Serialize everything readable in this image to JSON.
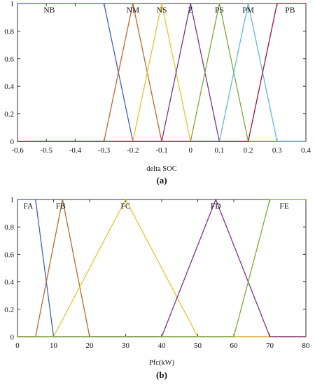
{
  "chart_data": [
    {
      "type": "line",
      "panel": "(a)",
      "xlabel": "delta SOC",
      "ylabel": "",
      "xlim": [
        -0.6,
        0.4
      ],
      "ylim": [
        0,
        1
      ],
      "xticks": [
        -0.6,
        -0.5,
        -0.4,
        -0.3,
        -0.2,
        -0.1,
        0,
        0.1,
        0.2,
        0.3,
        0.4
      ],
      "yticks": [
        0,
        0.2,
        0.4,
        0.6,
        0.8,
        1
      ],
      "xtick_labels": [
        "-0.6",
        "-0.5",
        "-0.4",
        "-0.3",
        "-0.2",
        "-0.1",
        "0",
        "0.1",
        "0.2",
        "0.3",
        "0.4"
      ],
      "ytick_labels": [
        "0",
        "0.2",
        "0.4",
        "0.6",
        "0.8",
        "1"
      ],
      "grid": false,
      "series": [
        {
          "name": "NB",
          "color": "#3d5fc4",
          "points": [
            [
              -0.6,
              1
            ],
            [
              -0.3,
              1
            ],
            [
              -0.2,
              0
            ],
            [
              0.4,
              0
            ]
          ]
        },
        {
          "name": "NM",
          "color": "#c0652a",
          "points": [
            [
              -0.6,
              0
            ],
            [
              -0.3,
              0
            ],
            [
              -0.2,
              1
            ],
            [
              -0.1,
              0
            ],
            [
              0.4,
              0
            ]
          ]
        },
        {
          "name": "NS",
          "color": "#e3c62a",
          "points": [
            [
              -0.6,
              0
            ],
            [
              -0.2,
              0
            ],
            [
              -0.1,
              1
            ],
            [
              0,
              0
            ],
            [
              0.4,
              0
            ]
          ]
        },
        {
          "name": "Z",
          "color": "#7e2f8e",
          "points": [
            [
              -0.6,
              0
            ],
            [
              -0.1,
              0
            ],
            [
              0,
              1
            ],
            [
              0.1,
              0
            ],
            [
              0.4,
              0
            ]
          ]
        },
        {
          "name": "PS",
          "color": "#77ac30",
          "points": [
            [
              -0.6,
              0
            ],
            [
              0,
              0
            ],
            [
              0.1,
              1
            ],
            [
              0.2,
              0
            ],
            [
              0.4,
              0
            ]
          ]
        },
        {
          "name": "PM",
          "color": "#5fb6e6",
          "points": [
            [
              -0.6,
              0
            ],
            [
              0.1,
              0
            ],
            [
              0.2,
              1
            ],
            [
              0.3,
              0
            ],
            [
              0.4,
              0
            ]
          ]
        },
        {
          "name": "PB",
          "color": "#a2142f",
          "points": [
            [
              -0.6,
              0
            ],
            [
              0.2,
              0
            ],
            [
              0.3,
              1
            ],
            [
              0.4,
              1
            ]
          ]
        }
      ],
      "mf_labels": [
        {
          "text": "NB",
          "x": -0.49
        },
        {
          "text": "NM",
          "x": -0.2
        },
        {
          "text": "NS",
          "x": -0.1
        },
        {
          "text": "Z",
          "x": 0
        },
        {
          "text": "PS",
          "x": 0.1
        },
        {
          "text": "PM",
          "x": 0.2
        },
        {
          "text": "PB",
          "x": 0.345
        }
      ]
    },
    {
      "type": "line",
      "panel": "(b)",
      "xlabel": "Pfc(kW)",
      "ylabel": "",
      "xlim": [
        0,
        80
      ],
      "ylim": [
        0,
        1
      ],
      "xticks": [
        0,
        10,
        20,
        30,
        40,
        50,
        60,
        70,
        80
      ],
      "yticks": [
        0,
        0.2,
        0.4,
        0.6,
        0.8,
        1
      ],
      "xtick_labels": [
        "0",
        "10",
        "20",
        "30",
        "40",
        "50",
        "60",
        "70",
        "80"
      ],
      "ytick_labels": [
        "0",
        "0.2",
        "0.4",
        "0.6",
        "0.8",
        "1"
      ],
      "grid": false,
      "series": [
        {
          "name": "FA",
          "color": "#3d5fc4",
          "points": [
            [
              0,
              1
            ],
            [
              5,
              1
            ],
            [
              10,
              0
            ],
            [
              80,
              0
            ]
          ]
        },
        {
          "name": "FB",
          "color": "#c0652a",
          "points": [
            [
              0,
              0
            ],
            [
              5,
              0
            ],
            [
              12.5,
              1
            ],
            [
              20,
              0
            ],
            [
              80,
              0
            ]
          ]
        },
        {
          "name": "FC",
          "color": "#e3c62a",
          "points": [
            [
              0,
              0
            ],
            [
              10,
              0
            ],
            [
              30,
              1
            ],
            [
              50,
              0
            ],
            [
              80,
              0
            ]
          ]
        },
        {
          "name": "FD",
          "color": "#7e2f8e",
          "points": [
            [
              0,
              0
            ],
            [
              40,
              0
            ],
            [
              55,
              1
            ],
            [
              70,
              0
            ],
            [
              80,
              0
            ]
          ]
        },
        {
          "name": "FE",
          "color": "#77ac30",
          "points": [
            [
              0,
              0
            ],
            [
              60,
              0
            ],
            [
              70,
              1
            ],
            [
              80,
              1
            ]
          ]
        }
      ],
      "mf_labels": [
        {
          "text": "FA",
          "x": 3
        },
        {
          "text": "FB",
          "x": 12
        },
        {
          "text": "FC",
          "x": 30
        },
        {
          "text": "FD",
          "x": 55
        },
        {
          "text": "FE",
          "x": 74
        }
      ]
    }
  ]
}
